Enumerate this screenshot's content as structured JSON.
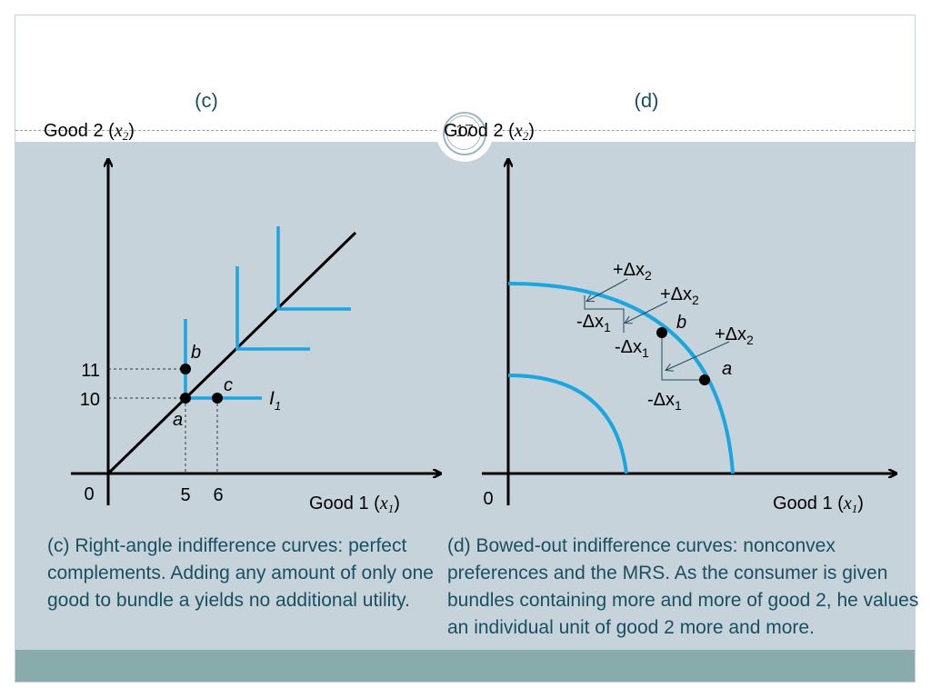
{
  "slide": {
    "page_number": "17",
    "panel_c": {
      "title": "(c)",
      "y_axis_label": "Good 2 (",
      "y_axis_var": "x",
      "y_axis_sub": "2",
      "x_axis_label": "Good 1 (",
      "x_axis_var": "x",
      "x_axis_sub": "1",
      "origin": "0",
      "y_ticks": [
        "11",
        "10"
      ],
      "x_ticks": [
        "5",
        "6"
      ],
      "point_a": "a",
      "point_b": "b",
      "point_c": "c",
      "curve_label": "I",
      "curve_sub": "1",
      "caption": "(c) Right-angle indifference curves: perfect complements. Adding any amount of only one good to bundle a yields no additional utility."
    },
    "panel_d": {
      "title": "(d)",
      "y_axis_label": "Good 2 (",
      "y_axis_var": "x",
      "y_axis_sub": "2",
      "x_axis_label": "Good 1 (",
      "x_axis_var": "x",
      "x_axis_sub": "1",
      "origin": "0",
      "point_a": "a",
      "point_b": "b",
      "plus_dx2": "+Δx",
      "plus_dx2_sub": "2",
      "minus_dx1": "-Δx",
      "minus_dx1_sub": "1",
      "caption": " (d) Bowed-out indifference curves: nonconvex preferences and the MRS. As the consumer is given bundles containing more and more of good 2, he values an individual unit of good 2 more and more."
    }
  },
  "colors": {
    "curve": "#1ba6df",
    "axis": "#000000",
    "caption": "#1a4f60",
    "body_bg": "#c7d3da",
    "footer_bg": "#8aabac"
  }
}
